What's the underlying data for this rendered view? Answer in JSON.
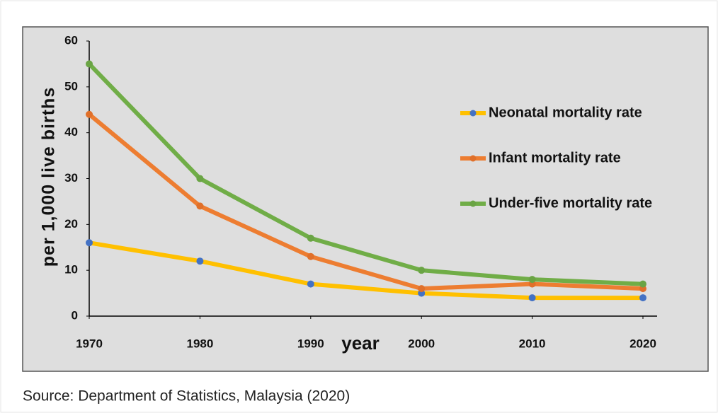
{
  "chart_data": {
    "type": "line",
    "x": [
      1970,
      1980,
      1990,
      2000,
      2010,
      2020
    ],
    "xlim": [
      1970,
      2020
    ],
    "xticks": [
      1970,
      1980,
      1990,
      2000,
      2010,
      2020
    ],
    "ylim": [
      0,
      60
    ],
    "yticks": [
      0,
      10,
      20,
      30,
      40,
      50,
      60
    ],
    "xlabel": "year",
    "ylabel": "per 1,000 live births",
    "grid": false,
    "legend": "right",
    "series": [
      {
        "name": "Neonatal mortality rate",
        "color": "#ffc000",
        "marker_color": "#4472c4",
        "values": [
          16,
          12,
          7,
          5,
          4,
          4
        ]
      },
      {
        "name": "Infant mortality rate",
        "color": "#ed7d31",
        "marker_color": "#e0702a",
        "values": [
          44,
          24,
          13,
          6,
          7,
          6
        ]
      },
      {
        "name": "Under-five mortality rate",
        "color": "#70ad47",
        "marker_color": "#6aa444",
        "values": [
          55,
          30,
          17,
          10,
          8,
          7
        ]
      }
    ],
    "source": "Source: Department of Statistics, Malaysia (2020)"
  }
}
